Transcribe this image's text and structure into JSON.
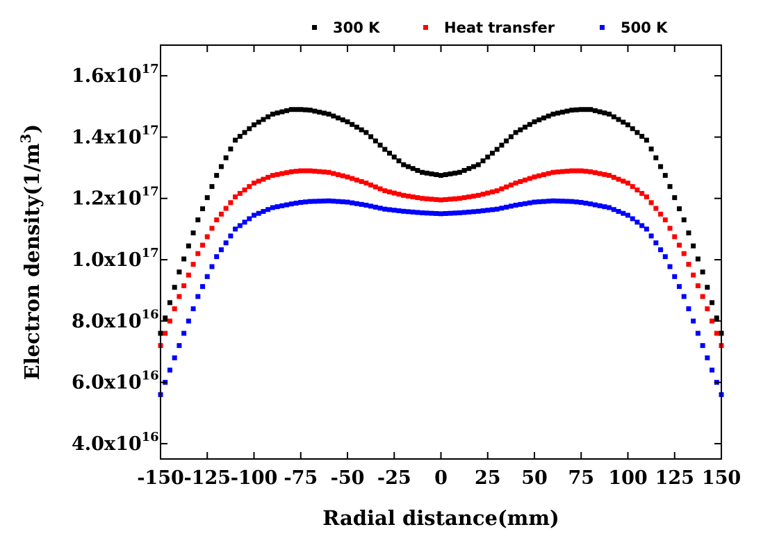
{
  "chart_data": {
    "type": "scatter",
    "xlabel": "Radial distance(mm)",
    "ylabel": {
      "prefix": "Electron density(1/m",
      "sup": "3",
      "suffix": ")"
    },
    "xlim": [
      -150,
      150
    ],
    "ylim": [
      3.5e+16,
      1.7e+17
    ],
    "x_ticks": [
      -150,
      -125,
      -100,
      -75,
      -50,
      -25,
      0,
      25,
      50,
      75,
      100,
      125,
      150
    ],
    "x_tick_labels": [
      "-150",
      "-125",
      "-100",
      "-75",
      "-50",
      "-25",
      "0",
      "25",
      "50",
      "75",
      "100",
      "125",
      "150"
    ],
    "y_ticks": [
      {
        "value": 4e+16,
        "mantissa": "4.0x10",
        "exp": "16"
      },
      {
        "value": 6e+16,
        "mantissa": "6.0x10",
        "exp": "16"
      },
      {
        "value": 8e+16,
        "mantissa": "8.0x10",
        "exp": "16"
      },
      {
        "value": 1e+17,
        "mantissa": "1.0x10",
        "exp": "17"
      },
      {
        "value": 1.2e+17,
        "mantissa": "1.2x10",
        "exp": "17"
      },
      {
        "value": 1.4e+17,
        "mantissa": "1.4x10",
        "exp": "17"
      },
      {
        "value": 1.6e+17,
        "mantissa": "1.6x10",
        "exp": "17"
      }
    ],
    "grid": false,
    "legend_position": "top",
    "marker": "square",
    "x": [
      -150,
      -140,
      -130,
      -120,
      -110,
      -100,
      -90,
      -80,
      -75,
      -70,
      -60,
      -50,
      -40,
      -30,
      -20,
      -10,
      0,
      10,
      20,
      30,
      40,
      50,
      60,
      70,
      75,
      80,
      90,
      100,
      110,
      120,
      130,
      140,
      150
    ],
    "series": [
      {
        "name": "300 K",
        "color": "#000000",
        "values": [
          7.6e+16,
          9.6e+16,
          1.13e+17,
          1.275e+17,
          1.39e+17,
          1.44e+17,
          1.475e+17,
          1.49e+17,
          1.49e+17,
          1.488e+17,
          1.475e+17,
          1.45e+17,
          1.415e+17,
          1.36e+17,
          1.31e+17,
          1.285e+17,
          1.275e+17,
          1.285e+17,
          1.31e+17,
          1.36e+17,
          1.415e+17,
          1.45e+17,
          1.475e+17,
          1.488e+17,
          1.49e+17,
          1.49e+17,
          1.475e+17,
          1.44e+17,
          1.39e+17,
          1.275e+17,
          1.13e+17,
          9.6e+16,
          7.6e+16
        ]
      },
      {
        "name": "Heat transfer",
        "color": "#ff0000",
        "values": [
          7.2e+16,
          8.8e+16,
          1.02e+17,
          1.13e+17,
          1.205e+17,
          1.25e+17,
          1.275e+17,
          1.287e+17,
          1.29e+17,
          1.29e+17,
          1.285e+17,
          1.27e+17,
          1.25e+17,
          1.225e+17,
          1.21e+17,
          1.2e+17,
          1.195e+17,
          1.2e+17,
          1.21e+17,
          1.225e+17,
          1.25e+17,
          1.27e+17,
          1.285e+17,
          1.29e+17,
          1.29e+17,
          1.287e+17,
          1.275e+17,
          1.25e+17,
          1.205e+17,
          1.13e+17,
          1.02e+17,
          8.8e+16,
          7.2e+16
        ]
      },
      {
        "name": "500 K",
        "color": "#0000ff",
        "values": [
          5.6e+16,
          7.2e+16,
          8.8e+16,
          1.01e+17,
          1.1e+17,
          1.145e+17,
          1.17e+17,
          1.182e+17,
          1.187e+17,
          1.19e+17,
          1.192e+17,
          1.188e+17,
          1.178e+17,
          1.165e+17,
          1.158e+17,
          1.153e+17,
          1.15e+17,
          1.153e+17,
          1.158e+17,
          1.165e+17,
          1.178e+17,
          1.188e+17,
          1.192e+17,
          1.19e+17,
          1.187e+17,
          1.182e+17,
          1.17e+17,
          1.145e+17,
          1.1e+17,
          1.01e+17,
          8.8e+16,
          7.2e+16,
          5.6e+16
        ]
      }
    ]
  }
}
